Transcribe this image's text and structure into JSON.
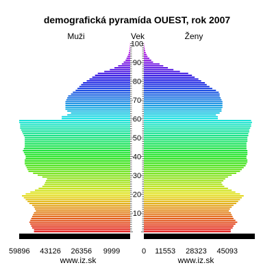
{
  "chart_data": {
    "type": "bar",
    "title": "demografická pyramída OUEST, rok 2007",
    "left_label": "Muži",
    "center_label": "Vek",
    "right_label": "Ženy",
    "age_ticks": [
      10,
      20,
      30,
      40,
      50,
      60,
      70,
      80,
      90,
      100
    ],
    "male_tick_labels": [
      "59896",
      "43126",
      "26356",
      "9999"
    ],
    "female_tick_labels": [
      "0",
      "11553",
      "28323",
      "45093"
    ],
    "male_tick_values": [
      59896,
      43126,
      26356,
      9999
    ],
    "female_tick_values": [
      0,
      11553,
      28323,
      45093
    ],
    "footer_left": "www.iz.sk",
    "footer_right": "www.iz.sk",
    "ages": [
      0,
      1,
      2,
      3,
      4,
      5,
      6,
      7,
      8,
      9,
      10,
      11,
      12,
      13,
      14,
      15,
      16,
      17,
      18,
      19,
      20,
      21,
      22,
      23,
      24,
      25,
      26,
      27,
      28,
      29,
      30,
      31,
      32,
      33,
      34,
      35,
      36,
      37,
      38,
      39,
      40,
      41,
      42,
      43,
      44,
      45,
      46,
      47,
      48,
      49,
      50,
      51,
      52,
      53,
      54,
      55,
      56,
      57,
      58,
      59,
      60,
      61,
      62,
      63,
      64,
      65,
      66,
      67,
      68,
      69,
      70,
      71,
      72,
      73,
      74,
      75,
      76,
      77,
      78,
      79,
      80,
      81,
      82,
      83,
      84,
      85,
      86,
      87,
      88,
      89,
      90,
      91,
      92,
      93,
      94,
      95,
      96,
      97,
      98,
      99,
      100
    ],
    "male": [
      52000,
      52000,
      53000,
      53500,
      54000,
      54500,
      54000,
      53500,
      53000,
      52500,
      52000,
      51000,
      51500,
      52000,
      53000,
      54500,
      55500,
      56500,
      57500,
      58500,
      56500,
      54000,
      51500,
      49500,
      47500,
      46500,
      46000,
      45500,
      45000,
      47500,
      50000,
      52500,
      55000,
      55500,
      56000,
      56500,
      57000,
      57000,
      57000,
      56500,
      56500,
      57000,
      57500,
      58000,
      57500,
      57000,
      57000,
      57000,
      57000,
      57000,
      57000,
      57500,
      58000,
      58500,
      59000,
      59500,
      59500,
      59500,
      60000,
      60000,
      37000,
      37000,
      34000,
      32000,
      34000,
      35000,
      35000,
      35000,
      35000,
      35000,
      34500,
      34000,
      33500,
      32000,
      31000,
      29500,
      28500,
      27500,
      26500,
      25500,
      23500,
      22000,
      20500,
      19000,
      17500,
      14000,
      11000,
      8500,
      6500,
      4500,
      3500,
      2500,
      2000,
      1500,
      1000,
      700,
      500,
      300,
      200,
      100,
      50
    ],
    "female": [
      47000,
      47000,
      48000,
      48500,
      49500,
      50500,
      49500,
      48500,
      48000,
      47500,
      47000,
      46000,
      46500,
      47500,
      48500,
      50000,
      51000,
      52000,
      53000,
      54000,
      52000,
      49500,
      47500,
      45500,
      43500,
      42500,
      42000,
      43000,
      44000,
      45500,
      47500,
      50000,
      52000,
      53000,
      54000,
      55000,
      55500,
      56000,
      56000,
      55500,
      55500,
      56000,
      56000,
      56000,
      55500,
      55500,
      55500,
      55500,
      56000,
      56000,
      56000,
      56500,
      56500,
      57000,
      57000,
      57500,
      58000,
      58000,
      58500,
      58000,
      40000,
      40000,
      39000,
      41000,
      42000,
      42000,
      42500,
      42500,
      42500,
      42500,
      42000,
      41500,
      41000,
      41000,
      40500,
      39000,
      37000,
      35500,
      34000,
      33000,
      31000,
      29500,
      27500,
      26000,
      24000,
      19500,
      16000,
      13000,
      10500,
      8500,
      5000,
      4000,
      3000,
      2000,
      1500,
      1000,
      700,
      500,
      300,
      150,
      80
    ]
  }
}
